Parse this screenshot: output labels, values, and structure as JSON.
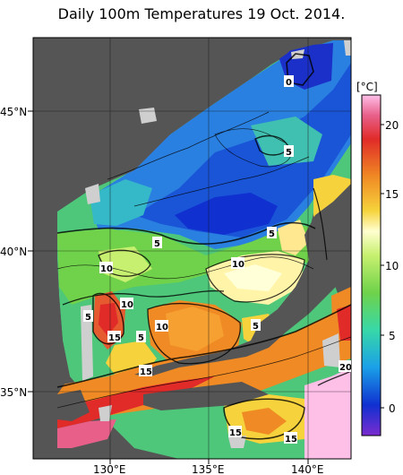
{
  "title": "Daily 100m Temperatures 19 Oct. 2014.",
  "colorbar": {
    "unit_label": "[°C]",
    "ticks": [
      "20",
      "15",
      "10",
      "5",
      "0"
    ],
    "colors": [
      "#7a2ccf",
      "#1030d0",
      "#1aa0e8",
      "#38d8a8",
      "#6fd24a",
      "#c8f070",
      "#ffffd0",
      "#f6d33c",
      "#f08a24",
      "#e02b28",
      "#e8608a",
      "#ffc0e8"
    ]
  },
  "axes": {
    "lat_labels": [
      "45°N",
      "40°N",
      "35°N"
    ],
    "lon_labels": [
      "130°E",
      "135°E",
      "140°E"
    ]
  },
  "contour_labels": [
    "0",
    "5",
    "5",
    "5",
    "10",
    "10",
    "10",
    "5",
    "15",
    "5",
    "10",
    "15",
    "5",
    "15",
    "20",
    "15",
    "15"
  ],
  "colors": {
    "land": "#555555",
    "nodata": "#cfcfcf",
    "frame": "#000000"
  }
}
